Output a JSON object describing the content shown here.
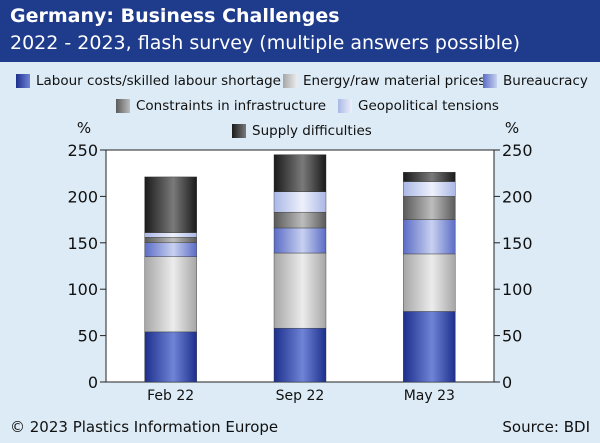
{
  "header": {
    "title": "Germany: Business Challenges",
    "subtitle": "2022 - 2023, flash survey (multiple answers possible)"
  },
  "footer": {
    "copyright": "© 2023 Plastics Information Europe",
    "source": "Source: BDI"
  },
  "colors": {
    "background": "#dcebf5",
    "header": "#1f3c8c",
    "plot_background": "#ffffff"
  },
  "chart_data": {
    "type": "bar",
    "stacked": true,
    "categories": [
      "Feb 22",
      "Sep 22",
      "May 23"
    ],
    "series": [
      {
        "name": "Labour costs/skilled labour shortage",
        "values": [
          54,
          58,
          76
        ],
        "color_dark": "#1c2f8c",
        "color_light": "#6f84d6"
      },
      {
        "name": "Energy/raw material prices",
        "values": [
          81,
          81,
          62
        ],
        "color_dark": "#a6a6a6",
        "color_light": "#ececec"
      },
      {
        "name": "Bureaucracy",
        "values": [
          15,
          27,
          37
        ],
        "color_dark": "#5b6cc6",
        "color_light": "#c8d1f0"
      },
      {
        "name": "Constraints in infrastructure",
        "values": [
          6,
          17,
          25
        ],
        "color_dark": "#5a5a5a",
        "color_light": "#bdbdbd"
      },
      {
        "name": "Geopolitical tensions",
        "values": [
          5,
          22,
          16
        ],
        "color_dark": "#aab7e6",
        "color_light": "#eef1fb"
      },
      {
        "name": "Supply difficulties",
        "values": [
          60,
          40,
          10
        ],
        "color_dark": "#1a1a1a",
        "color_light": "#7a7a7a"
      }
    ],
    "ylabel_left": "%",
    "ylabel_right": "%",
    "ylim": [
      0,
      250
    ],
    "yticks": [
      0,
      50,
      100,
      150,
      200,
      250
    ],
    "grid": false,
    "legend_position": "top"
  }
}
